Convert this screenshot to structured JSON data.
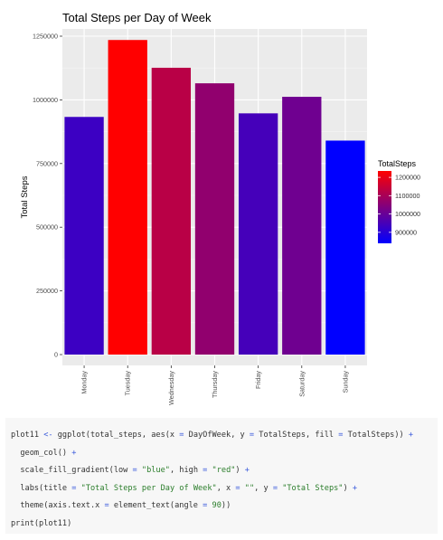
{
  "chart_data": {
    "type": "bar",
    "title": "Total Steps per Day of Week",
    "xlabel": "",
    "ylabel": "Total Steps",
    "categories": [
      "Monday",
      "Tuesday",
      "Wednesday",
      "Thursday",
      "Friday",
      "Saturday",
      "Sunday"
    ],
    "values": [
      933000,
      1235000,
      1126000,
      1065000,
      947000,
      1012000,
      840000
    ],
    "ylim": [
      0,
      1300000
    ],
    "yticks": [
      0,
      250000,
      500000,
      750000,
      1000000,
      1250000
    ],
    "ytick_labels": [
      "0",
      "250000",
      "500000",
      "750000",
      "1000000",
      "1250000"
    ],
    "grid": true,
    "panel_background": "#ebebeb",
    "legend": {
      "title": "TotalSteps",
      "position": "right",
      "breaks": [
        900000,
        1000000,
        1100000,
        1200000
      ],
      "labels": [
        "900000",
        "1000000",
        "1100000",
        "1200000"
      ],
      "low_color": "#0000ff",
      "high_color": "#ff0000"
    }
  },
  "code": {
    "lines": [
      [
        {
          "t": "plot11 "
        },
        {
          "t": "<-",
          "c": "op"
        },
        {
          "t": " ggplot(total_steps, aes(x "
        },
        {
          "t": "=",
          "c": "op"
        },
        {
          "t": " DayOfWeek, y "
        },
        {
          "t": "=",
          "c": "op"
        },
        {
          "t": " TotalSteps, fill "
        },
        {
          "t": "=",
          "c": "op"
        },
        {
          "t": " TotalSteps)) "
        },
        {
          "t": "+",
          "c": "op"
        }
      ],
      [
        {
          "t": "  geom_col() "
        },
        {
          "t": "+",
          "c": "op"
        }
      ],
      [
        {
          "t": "  scale_fill_gradient(low "
        },
        {
          "t": "=",
          "c": "op"
        },
        {
          "t": " "
        },
        {
          "t": "\"blue\"",
          "c": "str"
        },
        {
          "t": ", high "
        },
        {
          "t": "=",
          "c": "op"
        },
        {
          "t": " "
        },
        {
          "t": "\"red\"",
          "c": "str"
        },
        {
          "t": ") "
        },
        {
          "t": "+",
          "c": "op"
        }
      ],
      [
        {
          "t": "  labs(title "
        },
        {
          "t": "=",
          "c": "op"
        },
        {
          "t": " "
        },
        {
          "t": "\"Total Steps per Day of Week\"",
          "c": "str"
        },
        {
          "t": ", x "
        },
        {
          "t": "=",
          "c": "op"
        },
        {
          "t": " "
        },
        {
          "t": "\"\"",
          "c": "str"
        },
        {
          "t": ", y "
        },
        {
          "t": "=",
          "c": "op"
        },
        {
          "t": " "
        },
        {
          "t": "\"Total Steps\"",
          "c": "str"
        },
        {
          "t": ") "
        },
        {
          "t": "+",
          "c": "op"
        }
      ],
      [
        {
          "t": "  theme(axis.text.x "
        },
        {
          "t": "=",
          "c": "op"
        },
        {
          "t": " element_text(angle "
        },
        {
          "t": "=",
          "c": "op"
        },
        {
          "t": " "
        },
        {
          "t": "90",
          "c": "num"
        },
        {
          "t": "))"
        }
      ],
      [
        {
          "t": "print(plot11)"
        }
      ]
    ]
  }
}
